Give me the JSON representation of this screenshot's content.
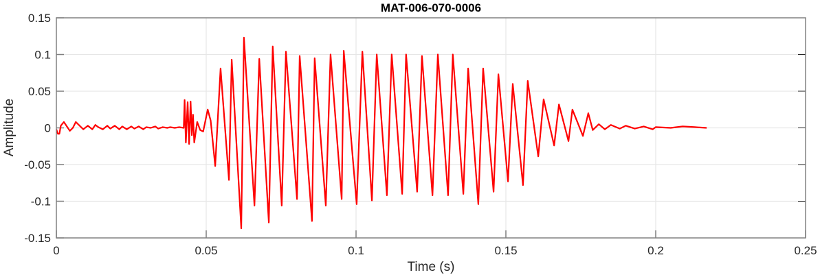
{
  "chart_data": {
    "type": "line",
    "title": "MAT-006-070-0006",
    "xlabel": "Time (s)",
    "ylabel": "Amplitude",
    "xlim": [
      0,
      0.25
    ],
    "ylim": [
      -0.15,
      0.15
    ],
    "xticks": [
      0,
      0.05,
      0.1,
      0.15,
      0.2,
      0.25
    ],
    "xtick_labels": [
      "0",
      "0.05",
      "0.1",
      "0.15",
      "0.2",
      "0.25"
    ],
    "yticks": [
      -0.15,
      -0.1,
      -0.05,
      0,
      0.05,
      0.1,
      0.15
    ],
    "ytick_labels": [
      "-0.15",
      "-0.1",
      "-0.05",
      "0",
      "0.05",
      "0.1",
      "0.15"
    ],
    "grid": true,
    "box": true,
    "line_color": "#ff0000",
    "series": [
      {
        "x": [
          0,
          0.0005,
          0.001,
          0.0015,
          0.0025,
          0.003,
          0.0045,
          0.0055,
          0.0065,
          0.008,
          0.009,
          0.0105,
          0.012,
          0.013,
          0.014,
          0.0155,
          0.017,
          0.018,
          0.0195,
          0.021,
          0.022,
          0.0235,
          0.025,
          0.026,
          0.0275,
          0.029,
          0.03,
          0.0315,
          0.033,
          0.034,
          0.0355,
          0.037,
          0.038,
          0.0395,
          0.041,
          0.0425,
          0.0428,
          0.0432,
          0.0438,
          0.0443,
          0.0448,
          0.0452,
          0.0456,
          0.046,
          0.047,
          0.048,
          0.049,
          0.0505,
          0.0515,
          0.053,
          0.0548,
          0.0576,
          0.0585,
          0.0617,
          0.0626,
          0.0661,
          0.0677,
          0.0709,
          0.0722,
          0.0752,
          0.0766,
          0.0803,
          0.0812,
          0.0853,
          0.0862,
          0.0899,
          0.0915,
          0.0952,
          0.0959,
          0.1002,
          0.1021,
          0.1053,
          0.1069,
          0.1103,
          0.1119,
          0.1154,
          0.1167,
          0.1204,
          0.122,
          0.1255,
          0.1273,
          0.1307,
          0.1323,
          0.1358,
          0.1374,
          0.1408,
          0.1424,
          0.1459,
          0.1475,
          0.1507,
          0.1523,
          0.1557,
          0.1573,
          0.1608,
          0.1626,
          0.1661,
          0.1677,
          0.1709,
          0.1722,
          0.1757,
          0.1775,
          0.179,
          0.181,
          0.183,
          0.185,
          0.188,
          0.19,
          0.193,
          0.196,
          0.199,
          0.2,
          0.205,
          0.209,
          0.213,
          0.217
        ],
        "y": [
          -0.002,
          -0.008,
          -0.008,
          0.003,
          0.008,
          0.005,
          -0.004,
          0.0,
          0.008,
          0.002,
          -0.002,
          0.003,
          -0.002,
          0.004,
          0.001,
          -0.002,
          0.003,
          -0.001,
          0.003,
          -0.002,
          0.002,
          -0.002,
          0.002,
          -0.001,
          0.002,
          -0.002,
          0.001,
          0.0,
          0.002,
          -0.001,
          0.001,
          0.0,
          0.001,
          0.0,
          0.001,
          0.0,
          0.038,
          -0.02,
          0.035,
          -0.022,
          0.036,
          -0.01,
          0.018,
          -0.02,
          0.008,
          -0.003,
          -0.005,
          0.025,
          0.01,
          -0.052,
          0.081,
          -0.071,
          0.093,
          -0.137,
          0.123,
          -0.106,
          0.094,
          -0.129,
          0.111,
          -0.106,
          0.104,
          -0.097,
          0.098,
          -0.127,
          0.095,
          -0.106,
          0.1,
          -0.097,
          0.105,
          -0.104,
          0.104,
          -0.099,
          0.1,
          -0.092,
          0.1,
          -0.09,
          0.1,
          -0.087,
          0.098,
          -0.092,
          0.1,
          -0.092,
          0.1,
          -0.09,
          0.081,
          -0.104,
          0.081,
          -0.087,
          0.073,
          -0.073,
          0.06,
          -0.078,
          0.064,
          -0.039,
          0.039,
          -0.024,
          0.032,
          -0.018,
          0.025,
          -0.011,
          0.02,
          -0.003,
          0.005,
          -0.002,
          0.004,
          -0.001,
          0.003,
          -0.001,
          0.002,
          -0.002,
          0.001,
          0.0,
          0.002,
          0.001,
          0.0
        ]
      }
    ]
  }
}
